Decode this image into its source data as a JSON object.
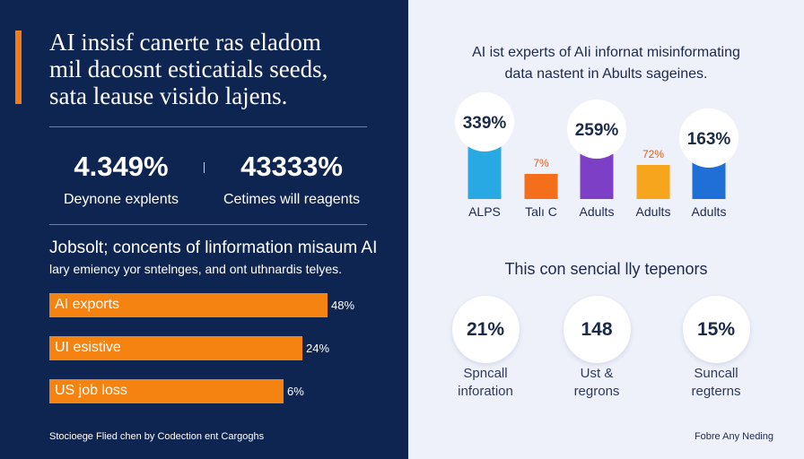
{
  "left": {
    "headline": [
      "AI insisf canerte ras eladom",
      "mil dacosnt esticatials seeds,",
      "sata leause visido lajens."
    ],
    "stats": [
      {
        "value": "4.349%",
        "label": "Deynone explents"
      },
      {
        "value": "43333%",
        "label": "Cetimes will reagents"
      }
    ],
    "section_title": "Jobsolt; concents of linformation misaum AI",
    "section_text": "lary emiency yor sntelnges, and ont uthnardis telyes.",
    "footer": "Stocioege Flied chen by Codection ent Cargoghs"
  },
  "right": {
    "title": [
      "AI ist experts of AIi infornat misinformating",
      "data nastent in Abults sageines."
    ],
    "subtitle": "This con sencial lly tepenors",
    "circle_stats": [
      {
        "value": "21%",
        "label": [
          "Spncall",
          "inforation"
        ]
      },
      {
        "value": "148",
        "label": [
          "Ust &",
          "regrons"
        ]
      },
      {
        "value": "15%",
        "label": [
          "Suncall",
          "regterns"
        ]
      }
    ],
    "footer": "Fobre Any Neding"
  },
  "chart_data": [
    {
      "type": "bar",
      "orientation": "horizontal",
      "categories": [
        "AI exports",
        "UI esistive",
        "US job loss"
      ],
      "values": [
        48,
        24,
        6
      ],
      "value_labels": [
        "48%",
        "24%",
        "6%"
      ],
      "colors": [
        "#f58312",
        "#f58312",
        "#f58312"
      ]
    },
    {
      "type": "bar",
      "orientation": "vertical",
      "categories": [
        "ALPS",
        "Talı C",
        "Adults",
        "Adults",
        "Adults"
      ],
      "value_labels": [
        "339%",
        "7%",
        "259%",
        "72%",
        "163%"
      ],
      "label_style": [
        "bubble",
        "plain",
        "bubble",
        "plain",
        "bubble"
      ],
      "values": [
        339,
        7,
        259,
        72,
        163
      ],
      "colors": [
        "#29a9e3",
        "#f46e1c",
        "#7d3fc6",
        "#f7a51c",
        "#1f6fd6"
      ]
    }
  ]
}
